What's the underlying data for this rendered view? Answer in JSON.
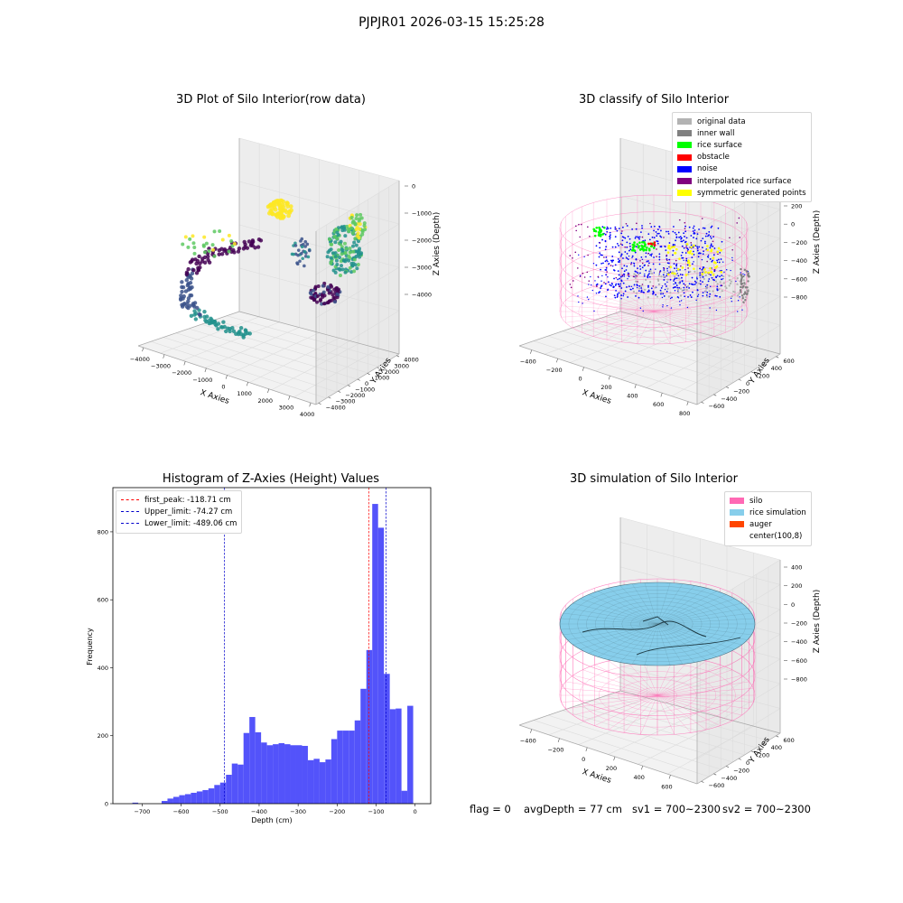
{
  "figure": {
    "suptitle": "PJPJR01 2026-03-15 15:25:28",
    "status": {
      "flag": "flag = 0",
      "avg_depth": "avgDepth = 77 cm",
      "sv1": "sv1 = 700~2300",
      "sv2": "sv2 = 700~2300"
    }
  },
  "chart_data": [
    {
      "type": "scatter",
      "title": "3D Plot of Silo Interior(row data)",
      "xlabel": "X Axies",
      "ylabel": "Y Axies",
      "zlabel": "Z Axies (Depth)",
      "x_ticks": [
        "−4000",
        "−3000",
        "−2000",
        "−1000",
        "0",
        "1000",
        "2000",
        "3000",
        "4000"
      ],
      "y_ticks": [
        "4000",
        "3000",
        "2000",
        "1000",
        "0",
        "−1000",
        "−2000",
        "−3000",
        "−4000"
      ],
      "z_ticks": [
        "0",
        "−1000",
        "−2000",
        "−3000",
        "−4000"
      ],
      "colormap": [
        "#440154",
        "#3b528b",
        "#21918c",
        "#5ec962",
        "#fde725"
      ]
    },
    {
      "type": "scatter",
      "title": "3D classify of Silo Interior",
      "xlabel": "X Axies",
      "ylabel": "Y Axies",
      "zlabel": "Z Axies (Depth)",
      "x_ticks": [
        "−400",
        "−200",
        "0",
        "200",
        "400",
        "600",
        "800"
      ],
      "y_ticks": [
        "600",
        "400",
        "200",
        "0",
        "−200",
        "−400",
        "−600"
      ],
      "z_ticks": [
        "200",
        "0",
        "−200",
        "−400",
        "−600",
        "−800"
      ],
      "legend": [
        {
          "label": "original data",
          "color": "#b3b3b3"
        },
        {
          "label": "inner wall",
          "color": "#808080"
        },
        {
          "label": "rice surface",
          "color": "#00ff00"
        },
        {
          "label": "obstacle",
          "color": "#ff0000"
        },
        {
          "label": "noise",
          "color": "#0000ff"
        },
        {
          "label": "interpolated rice surface",
          "color": "#800080"
        },
        {
          "label": "symmetric generated points",
          "color": "#ffff00"
        }
      ]
    },
    {
      "type": "bar",
      "title": "Histogram of Z-Axies (Height) Values",
      "xlabel": "Depth (cm)",
      "ylabel": "Frequency",
      "xlim": [
        -775,
        40
      ],
      "ylim": [
        0,
        930
      ],
      "x_ticks": [
        -700,
        -600,
        -500,
        -400,
        -300,
        -200,
        -100,
        0
      ],
      "y_ticks": [
        0,
        200,
        400,
        600,
        800
      ],
      "bar_color": "#5050fa",
      "bin_width": 15,
      "bins": [
        [
          -725,
          3
        ],
        [
          -650,
          8
        ],
        [
          -635,
          15
        ],
        [
          -620,
          20
        ],
        [
          -605,
          25
        ],
        [
          -590,
          28
        ],
        [
          -575,
          32
        ],
        [
          -560,
          36
        ],
        [
          -545,
          40
        ],
        [
          -530,
          45
        ],
        [
          -515,
          55
        ],
        [
          -500,
          62
        ],
        [
          -485,
          85
        ],
        [
          -470,
          118
        ],
        [
          -455,
          115
        ],
        [
          -440,
          208
        ],
        [
          -425,
          255
        ],
        [
          -410,
          210
        ],
        [
          -395,
          180
        ],
        [
          -380,
          172
        ],
        [
          -365,
          175
        ],
        [
          -350,
          178
        ],
        [
          -335,
          175
        ],
        [
          -320,
          172
        ],
        [
          -305,
          172
        ],
        [
          -290,
          170
        ],
        [
          -275,
          128
        ],
        [
          -260,
          132
        ],
        [
          -245,
          122
        ],
        [
          -230,
          130
        ],
        [
          -215,
          190
        ],
        [
          -200,
          215
        ],
        [
          -185,
          215
        ],
        [
          -170,
          215
        ],
        [
          -155,
          245
        ],
        [
          -140,
          338
        ],
        [
          -125,
          452
        ],
        [
          -110,
          882
        ],
        [
          -95,
          812
        ],
        [
          -80,
          382
        ],
        [
          -65,
          278
        ],
        [
          -50,
          280
        ],
        [
          -35,
          38
        ],
        [
          -20,
          288
        ]
      ],
      "lines": [
        {
          "label": "first_peak: -118.71 cm",
          "x": -118.71,
          "color": "#ff0000"
        },
        {
          "label": "Upper_limit: -74.27 cm",
          "x": -74.27,
          "color": "#0000cc"
        },
        {
          "label": "Lower_limit: -489.06 cm",
          "x": -489.06,
          "color": "#0000cc"
        }
      ]
    },
    {
      "type": "scatter",
      "title": "3D simulation of Silo Interior",
      "xlabel": "X Axies",
      "ylabel": "Y Axies",
      "zlabel": "Z Axies (Depth)",
      "x_ticks": [
        "−400",
        "−200",
        "0",
        "200",
        "400",
        "600"
      ],
      "y_ticks": [
        "600",
        "400",
        "200",
        "0",
        "−200",
        "−400",
        "−600"
      ],
      "z_ticks": [
        "400",
        "200",
        "0",
        "−200",
        "−400",
        "−600",
        "−800"
      ],
      "legend": [
        {
          "label": "silo",
          "color": "#ff69b4"
        },
        {
          "label": "rice simulation",
          "color": "#87ceeb"
        },
        {
          "label": "auger",
          "color": "#ff4500"
        },
        {
          "label": "center(100,8)",
          "color": "#ffffff"
        }
      ]
    }
  ]
}
